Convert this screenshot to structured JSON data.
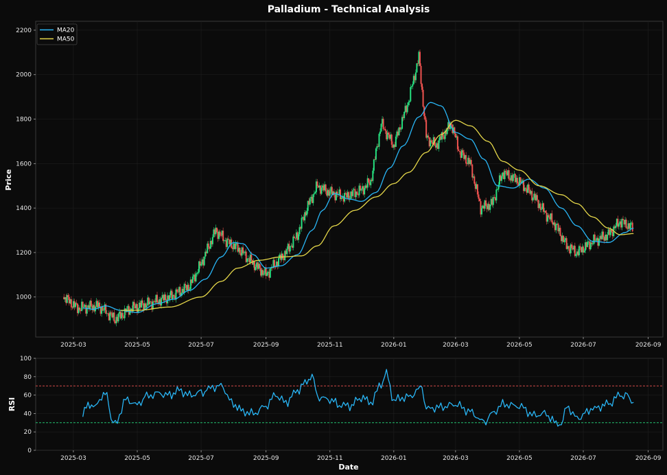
{
  "title": "Palladium - Technical Analysis",
  "chart_data": [
    {
      "type": "candlestick",
      "panel": "price",
      "ylabel": "Price",
      "ylim": [
        820,
        2240
      ],
      "yticks": [
        1000,
        1200,
        1400,
        1600,
        1800,
        2000,
        2200
      ],
      "x_range": [
        "2025-01-24",
        "2026-09-15"
      ],
      "x_ticks": [
        "2025-03-01",
        "2025-05-01",
        "2025-07-01",
        "2025-09-01",
        "2025-11-01",
        "2026-01-01",
        "2026-03-01",
        "2026-05-01",
        "2026-07-01",
        "2026-09-01"
      ],
      "x_tick_labels": [
        "2025-03",
        "2025-05",
        "2025-07",
        "2025-09",
        "2025-11",
        "2026-01",
        "2026-03",
        "2026-05",
        "2026-07",
        "2026-09"
      ],
      "grid": true,
      "legend_position": "top-left",
      "colors": {
        "up": "#26e07f",
        "down": "#ef5350"
      },
      "candle_anchors": [
        [
          "2025-02-20",
          1000
        ],
        [
          "2025-03-05",
          950
        ],
        [
          "2025-03-25",
          960
        ],
        [
          "2025-04-10",
          900
        ],
        [
          "2025-04-25",
          950
        ],
        [
          "2025-05-15",
          975
        ],
        [
          "2025-06-01",
          1000
        ],
        [
          "2025-06-20",
          1050
        ],
        [
          "2025-07-01",
          1150
        ],
        [
          "2025-07-15",
          1300
        ],
        [
          "2025-07-25",
          1250
        ],
        [
          "2025-08-05",
          1220
        ],
        [
          "2025-08-20",
          1150
        ],
        [
          "2025-09-01",
          1100
        ],
        [
          "2025-09-10",
          1150
        ],
        [
          "2025-09-20",
          1200
        ],
        [
          "2025-10-01",
          1280
        ],
        [
          "2025-10-10",
          1400
        ],
        [
          "2025-10-20",
          1500
        ],
        [
          "2025-11-01",
          1470
        ],
        [
          "2025-11-15",
          1450
        ],
        [
          "2025-12-01",
          1480
        ],
        [
          "2025-12-10",
          1520
        ],
        [
          "2025-12-20",
          1780
        ],
        [
          "2026-01-01",
          1680
        ],
        [
          "2026-01-15",
          1880
        ],
        [
          "2026-01-25",
          2080
        ],
        [
          "2026-02-01",
          1720
        ],
        [
          "2026-02-10",
          1680
        ],
        [
          "2026-02-25",
          1780
        ],
        [
          "2026-03-05",
          1650
        ],
        [
          "2026-03-15",
          1600
        ],
        [
          "2026-03-25",
          1400
        ],
        [
          "2026-04-05",
          1420
        ],
        [
          "2026-04-15",
          1560
        ],
        [
          "2026-05-01",
          1520
        ],
        [
          "2026-05-15",
          1450
        ],
        [
          "2026-05-25",
          1380
        ],
        [
          "2026-06-05",
          1320
        ],
        [
          "2026-06-15",
          1230
        ],
        [
          "2026-06-25",
          1200
        ],
        [
          "2026-07-10",
          1250
        ],
        [
          "2026-07-25",
          1280
        ],
        [
          "2026-08-05",
          1340
        ],
        [
          "2026-08-18",
          1310
        ]
      ],
      "series": [
        {
          "name": "MA20",
          "color": "#29b6f6",
          "points": [
            [
              "2025-03-10",
              950
            ],
            [
              "2025-03-20",
              945
            ],
            [
              "2025-04-01",
              960
            ],
            [
              "2025-04-15",
              940
            ],
            [
              "2025-05-01",
              930
            ],
            [
              "2025-05-20",
              970
            ],
            [
              "2025-06-05",
              990
            ],
            [
              "2025-06-20",
              1030
            ],
            [
              "2025-07-05",
              1080
            ],
            [
              "2025-07-20",
              1180
            ],
            [
              "2025-08-01",
              1245
            ],
            [
              "2025-08-10",
              1240
            ],
            [
              "2025-08-20",
              1190
            ],
            [
              "2025-09-01",
              1130
            ],
            [
              "2025-09-15",
              1140
            ],
            [
              "2025-10-01",
              1190
            ],
            [
              "2025-10-15",
              1300
            ],
            [
              "2025-10-25",
              1390
            ],
            [
              "2025-11-05",
              1465
            ],
            [
              "2025-11-20",
              1440
            ],
            [
              "2025-12-01",
              1430
            ],
            [
              "2025-12-15",
              1470
            ],
            [
              "2025-12-28",
              1580
            ],
            [
              "2026-01-10",
              1680
            ],
            [
              "2026-01-25",
              1810
            ],
            [
              "2026-02-05",
              1875
            ],
            [
              "2026-02-15",
              1860
            ],
            [
              "2026-03-01",
              1740
            ],
            [
              "2026-03-15",
              1710
            ],
            [
              "2026-03-28",
              1620
            ],
            [
              "2026-04-10",
              1500
            ],
            [
              "2026-04-25",
              1490
            ],
            [
              "2026-05-10",
              1530
            ],
            [
              "2026-05-25",
              1490
            ],
            [
              "2026-06-10",
              1400
            ],
            [
              "2026-06-25",
              1320
            ],
            [
              "2026-07-10",
              1250
            ],
            [
              "2026-07-25",
              1245
            ],
            [
              "2026-08-10",
              1290
            ],
            [
              "2026-08-18",
              1310
            ]
          ]
        },
        {
          "name": "MA50",
          "color": "#e6d84a",
          "points": [
            [
              "2025-04-15",
              940
            ],
            [
              "2025-05-01",
              940
            ],
            [
              "2025-06-01",
              955
            ],
            [
              "2025-07-01",
              1000
            ],
            [
              "2025-07-20",
              1070
            ],
            [
              "2025-08-05",
              1130
            ],
            [
              "2025-08-25",
              1165
            ],
            [
              "2025-09-15",
              1180
            ],
            [
              "2025-10-05",
              1185
            ],
            [
              "2025-10-20",
              1230
            ],
            [
              "2025-11-05",
              1320
            ],
            [
              "2025-11-25",
              1390
            ],
            [
              "2025-12-15",
              1450
            ],
            [
              "2026-01-01",
              1510
            ],
            [
              "2026-01-15",
              1560
            ],
            [
              "2026-02-01",
              1650
            ],
            [
              "2026-02-15",
              1730
            ],
            [
              "2026-03-01",
              1795
            ],
            [
              "2026-03-15",
              1770
            ],
            [
              "2026-04-01",
              1700
            ],
            [
              "2026-04-15",
              1610
            ],
            [
              "2026-05-01",
              1570
            ],
            [
              "2026-05-20",
              1500
            ],
            [
              "2026-06-10",
              1460
            ],
            [
              "2026-06-25",
              1420
            ],
            [
              "2026-07-10",
              1360
            ],
            [
              "2026-07-25",
              1310
            ],
            [
              "2026-08-05",
              1280
            ],
            [
              "2026-08-18",
              1285
            ]
          ]
        }
      ]
    },
    {
      "type": "line",
      "panel": "rsi",
      "ylabel": "RSI",
      "xlabel": "Date",
      "ylim": [
        0,
        100
      ],
      "yticks": [
        0,
        20,
        40,
        60,
        80,
        100
      ],
      "reference_lines": [
        {
          "value": 70,
          "color": "#ef5350"
        },
        {
          "value": 30,
          "color": "#26e07f"
        }
      ],
      "series": [
        {
          "name": "",
          "color": "#29b6f6",
          "points": [
            [
              "2025-03-10",
              38
            ],
            [
              "2025-03-15",
              52
            ],
            [
              "2025-03-20",
              45
            ],
            [
              "2025-03-28",
              58
            ],
            [
              "2025-04-02",
              62
            ],
            [
              "2025-04-06",
              35
            ],
            [
              "2025-04-10",
              28
            ],
            [
              "2025-04-20",
              55
            ],
            [
              "2025-05-01",
              50
            ],
            [
              "2025-05-10",
              58
            ],
            [
              "2025-05-20",
              62
            ],
            [
              "2025-06-01",
              60
            ],
            [
              "2025-06-10",
              65
            ],
            [
              "2025-06-20",
              60
            ],
            [
              "2025-07-01",
              62
            ],
            [
              "2025-07-10",
              68
            ],
            [
              "2025-07-20",
              70
            ],
            [
              "2025-08-01",
              50
            ],
            [
              "2025-08-10",
              42
            ],
            [
              "2025-08-20",
              40
            ],
            [
              "2025-09-01",
              48
            ],
            [
              "2025-09-10",
              60
            ],
            [
              "2025-09-20",
              52
            ],
            [
              "2025-10-01",
              65
            ],
            [
              "2025-10-10",
              75
            ],
            [
              "2025-10-15",
              82
            ],
            [
              "2025-10-20",
              58
            ],
            [
              "2025-11-01",
              55
            ],
            [
              "2025-11-10",
              50
            ],
            [
              "2025-11-20",
              48
            ],
            [
              "2025-12-01",
              58
            ],
            [
              "2025-12-10",
              52
            ],
            [
              "2025-12-20",
              72
            ],
            [
              "2025-12-25",
              83
            ],
            [
              "2026-01-01",
              55
            ],
            [
              "2026-01-15",
              58
            ],
            [
              "2026-01-28",
              68
            ],
            [
              "2026-02-01",
              45
            ],
            [
              "2026-02-15",
              47
            ],
            [
              "2026-03-01",
              50
            ],
            [
              "2026-03-15",
              42
            ],
            [
              "2026-03-28",
              30
            ],
            [
              "2026-04-05",
              40
            ],
            [
              "2026-04-15",
              50
            ],
            [
              "2026-05-01",
              48
            ],
            [
              "2026-05-15",
              38
            ],
            [
              "2026-05-25",
              40
            ],
            [
              "2026-06-05",
              30
            ],
            [
              "2026-06-10",
              27
            ],
            [
              "2026-06-15",
              48
            ],
            [
              "2026-06-25",
              35
            ],
            [
              "2026-07-10",
              45
            ],
            [
              "2026-07-25",
              50
            ],
            [
              "2026-08-05",
              60
            ],
            [
              "2026-08-12",
              58
            ],
            [
              "2026-08-18",
              52
            ]
          ]
        }
      ]
    }
  ]
}
